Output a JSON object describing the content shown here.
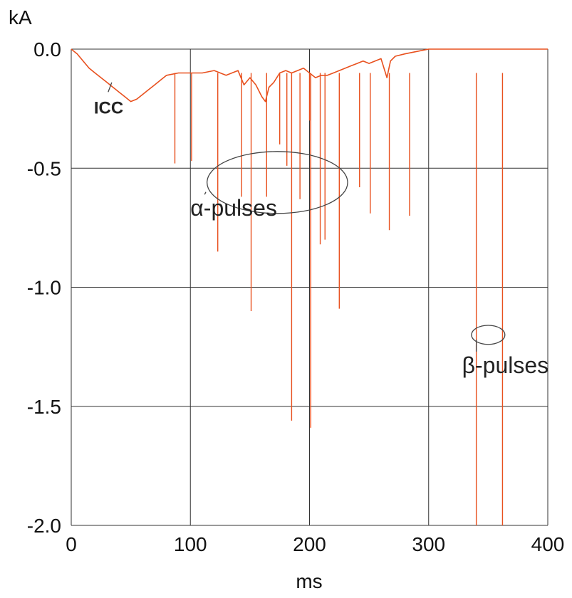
{
  "chart_data": {
    "type": "line",
    "xlabel": "ms",
    "ylabel": "kA",
    "xlim": [
      0,
      400
    ],
    "ylim": [
      -2.0,
      0.0
    ],
    "x_ticks": [
      0,
      100,
      200,
      300,
      400
    ],
    "x_tick_labels": [
      "0",
      "100",
      "200",
      "300",
      "400"
    ],
    "y_ticks": [
      0.0,
      -0.5,
      -1.0,
      -1.5,
      -2.0
    ],
    "y_tick_labels": [
      "0.0",
      "-0.5",
      "-1.0",
      "-1.5",
      "-2.0"
    ],
    "grid": true,
    "series_color": "#e8501e",
    "series": [
      {
        "name": "ICC",
        "x": [
          0,
          5,
          10,
          15,
          20,
          25,
          30,
          35,
          40,
          45,
          50,
          55,
          60,
          65,
          70,
          75,
          80,
          90,
          100,
          110,
          120,
          130,
          140,
          145,
          150,
          155,
          160,
          163,
          166,
          170,
          175,
          180,
          185,
          190,
          195,
          200,
          205,
          210,
          215,
          220,
          225,
          230,
          235,
          240,
          245,
          250,
          255,
          260,
          265,
          268,
          272,
          280,
          290,
          300,
          320,
          340,
          360,
          380,
          400
        ],
        "y": [
          0.0,
          -0.02,
          -0.05,
          -0.08,
          -0.1,
          -0.12,
          -0.14,
          -0.16,
          -0.18,
          -0.2,
          -0.22,
          -0.21,
          -0.19,
          -0.17,
          -0.15,
          -0.13,
          -0.11,
          -0.1,
          -0.1,
          -0.1,
          -0.09,
          -0.11,
          -0.09,
          -0.15,
          -0.12,
          -0.15,
          -0.2,
          -0.22,
          -0.16,
          -0.14,
          -0.1,
          -0.09,
          -0.1,
          -0.09,
          -0.08,
          -0.1,
          -0.12,
          -0.11,
          -0.11,
          -0.1,
          -0.09,
          -0.08,
          -0.07,
          -0.06,
          -0.05,
          -0.06,
          -0.05,
          -0.04,
          -0.12,
          -0.05,
          -0.03,
          -0.02,
          -0.01,
          0.0,
          0.0,
          0.0,
          0.0,
          0.0,
          0.0
        ]
      }
    ],
    "pulses": [
      {
        "x": 87,
        "y": -0.48,
        "kind": "alpha"
      },
      {
        "x": 101,
        "y": -0.47,
        "kind": "alpha"
      },
      {
        "x": 123,
        "y": -0.85,
        "kind": "alpha"
      },
      {
        "x": 143,
        "y": -0.62,
        "kind": "alpha"
      },
      {
        "x": 151,
        "y": -1.1,
        "kind": "alpha"
      },
      {
        "x": 164,
        "y": -0.62,
        "kind": "alpha"
      },
      {
        "x": 175,
        "y": -0.4,
        "kind": "alpha"
      },
      {
        "x": 181,
        "y": -0.49,
        "kind": "alpha"
      },
      {
        "x": 185,
        "y": -1.56,
        "kind": "alpha"
      },
      {
        "x": 192,
        "y": -0.63,
        "kind": "alpha"
      },
      {
        "x": 200,
        "y": -0.3,
        "kind": "alpha"
      },
      {
        "x": 201,
        "y": -1.59,
        "kind": "alpha"
      },
      {
        "x": 209,
        "y": -0.82,
        "kind": "alpha"
      },
      {
        "x": 213,
        "y": -0.8,
        "kind": "alpha"
      },
      {
        "x": 225,
        "y": -1.09,
        "kind": "alpha"
      },
      {
        "x": 242,
        "y": -0.58,
        "kind": "alpha"
      },
      {
        "x": 251,
        "y": -0.69,
        "kind": "alpha"
      },
      {
        "x": 267,
        "y": -0.76,
        "kind": "alpha"
      },
      {
        "x": 284,
        "y": -0.7,
        "kind": "alpha"
      },
      {
        "x": 340,
        "y": -2.0,
        "kind": "beta"
      },
      {
        "x": 362,
        "y": -2.0,
        "kind": "beta"
      }
    ],
    "annotations": [
      {
        "text": "α-pulses",
        "ellipse_center": [
          173,
          -0.56
        ],
        "ellipse_radii": [
          59,
          0.13
        ],
        "leader_to": [
          113,
          -0.6
        ],
        "label_anchor": [
          106,
          -0.7
        ]
      },
      {
        "text": "β-pulses",
        "ellipse_center": [
          350,
          -1.2
        ],
        "ellipse_radii": [
          14,
          0.04
        ],
        "leader_to": [
          340,
          -1.22
        ],
        "label_anchor": [
          334,
          -1.36
        ]
      },
      {
        "text": "ICC",
        "leader_to": [
          34,
          -0.14
        ],
        "label_anchor": [
          25,
          -0.27
        ]
      }
    ]
  }
}
